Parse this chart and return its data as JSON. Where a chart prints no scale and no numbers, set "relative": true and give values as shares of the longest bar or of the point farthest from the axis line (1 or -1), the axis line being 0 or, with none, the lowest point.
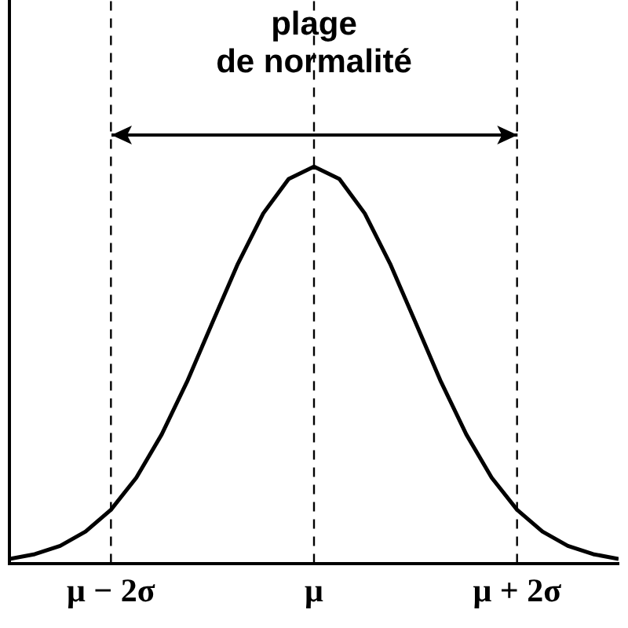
{
  "chart_data": {
    "type": "line",
    "relative": true,
    "annotations": [
      "plage\nde normalité"
    ],
    "x": [
      -3,
      -2.75,
      -2.5,
      -2.25,
      -2,
      -1.75,
      -1.5,
      -1.25,
      -1,
      -0.75,
      -0.5,
      -0.25,
      0,
      0.25,
      0.5,
      0.75,
      1,
      1.25,
      1.5,
      1.75,
      2,
      2.25,
      2.5,
      2.75,
      3
    ],
    "series": [
      {
        "color": "#000000",
        "values": [
          0.011,
          0.023,
          0.044,
          0.08,
          0.135,
          0.216,
          0.325,
          0.458,
          0.607,
          0.755,
          0.882,
          0.969,
          1,
          0.969,
          0.882,
          0.755,
          0.607,
          0.458,
          0.325,
          0.216,
          0.135,
          0.08,
          0.044,
          0.023,
          0.011
        ]
      }
    ],
    "xlim": [
      -3,
      3
    ],
    "xticks": [
      {
        "value": -2,
        "label": "μ − 2σ"
      },
      {
        "value": 0,
        "label": "μ"
      },
      {
        "value": 2,
        "label": "μ + 2σ"
      }
    ],
    "ref_lines": [
      {
        "axis": "x",
        "value": -2,
        "color": "#000000",
        "line_style": "dashed"
      },
      {
        "axis": "x",
        "value": 0,
        "color": "#000000",
        "line_style": "dashed"
      },
      {
        "axis": "x",
        "value": 2,
        "color": "#000000",
        "line_style": "dashed"
      }
    ],
    "grid": false,
    "legend": false,
    "marker": "none",
    "line_style": "solid"
  }
}
